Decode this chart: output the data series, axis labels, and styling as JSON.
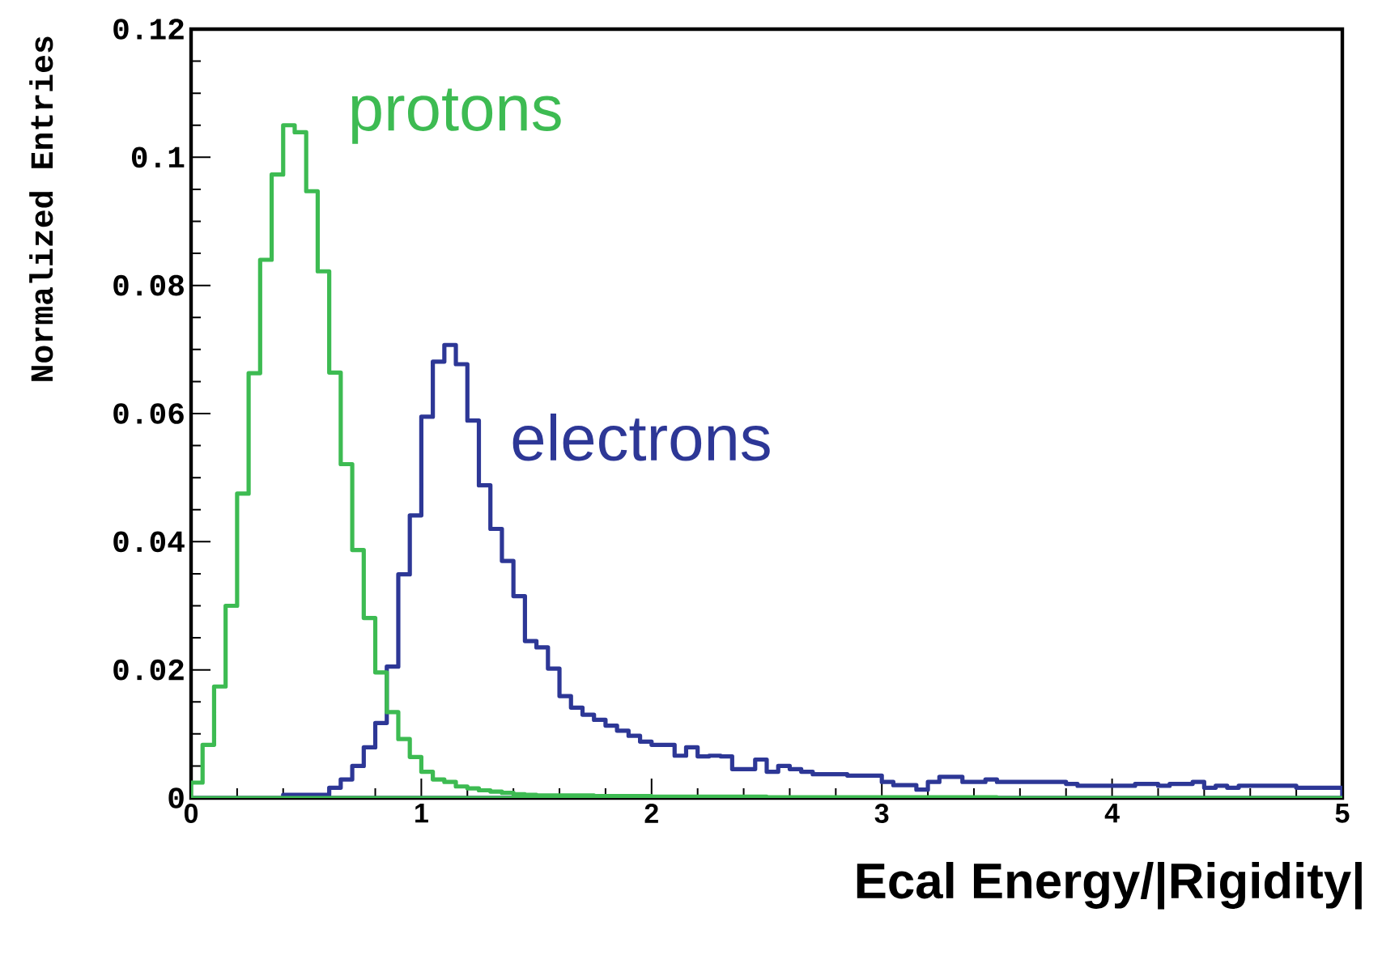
{
  "chart_data": {
    "type": "histogram",
    "xlabel": "Ecal Energy/|Rigidity|",
    "ylabel": "Normalized Entries",
    "bins": [
      0,
      0.05,
      0.1,
      0.15,
      0.2,
      0.25,
      0.3,
      0.35,
      0.4,
      0.45,
      0.5,
      0.55,
      0.6,
      0.65,
      0.7,
      0.75,
      0.8,
      0.85,
      0.9,
      0.95,
      1,
      1.05,
      1.1,
      1.15,
      1.2,
      1.25,
      1.3,
      1.35,
      1.4,
      1.45,
      1.5,
      1.55,
      1.6,
      1.65,
      1.7,
      1.75,
      1.8,
      1.85,
      1.9,
      1.95,
      2,
      2.05,
      2.1,
      2.15,
      2.2,
      2.25,
      2.3,
      2.35,
      2.4,
      2.45,
      2.5,
      2.55,
      2.6,
      2.65,
      2.7,
      2.75,
      2.8,
      2.85,
      2.9,
      2.95,
      3,
      3.05,
      3.1,
      3.15,
      3.2,
      3.25,
      3.3,
      3.35,
      3.4,
      3.45,
      3.5,
      3.55,
      3.6,
      3.65,
      3.7,
      3.75,
      3.8,
      3.85,
      3.9,
      3.95,
      4,
      4.05,
      4.1,
      4.15,
      4.2,
      4.25,
      4.3,
      4.35,
      4.4,
      4.45,
      4.5,
      4.55,
      4.6,
      4.65,
      4.7,
      4.75,
      4.8,
      4.85,
      4.9,
      4.95,
      5
    ],
    "series": [
      {
        "name": "electrons",
        "color": "#2d3796",
        "values": [
          0,
          0,
          0,
          0,
          0,
          0,
          0,
          0,
          0.0005,
          0.0005,
          0.0005,
          0.0005,
          0.0016,
          0.0029,
          0.005,
          0.0079,
          0.0117,
          0.0205,
          0.0349,
          0.0441,
          0.0595,
          0.0681,
          0.0707,
          0.0677,
          0.0589,
          0.0488,
          0.042,
          0.037,
          0.0315,
          0.0245,
          0.0235,
          0.0202,
          0.0159,
          0.0141,
          0.013,
          0.0122,
          0.0113,
          0.0105,
          0.0097,
          0.0088,
          0.0083,
          0.0083,
          0.0066,
          0.0079,
          0.0065,
          0.0066,
          0.0065,
          0.0045,
          0.0045,
          0.006,
          0.0041,
          0.005,
          0.0045,
          0.0041,
          0.0037,
          0.0037,
          0.0037,
          0.0035,
          0.0035,
          0.0035,
          0.0025,
          0.002,
          0.002,
          0.0013,
          0.0025,
          0.0033,
          0.0033,
          0.0025,
          0.0025,
          0.0029,
          0.0025,
          0.0025,
          0.0025,
          0.0025,
          0.0025,
          0.0025,
          0.0022,
          0.0019,
          0.0019,
          0.0019,
          0.0019,
          0.0019,
          0.0022,
          0.0022,
          0.0019,
          0.0022,
          0.0022,
          0.0025,
          0.0016,
          0.0019,
          0.0016,
          0.0019,
          0.0019,
          0.0019,
          0.0019,
          0.0019,
          0.0016,
          0.0016,
          0.0016,
          0.0016
        ]
      },
      {
        "name": "protons",
        "color": "#3dbb52",
        "values": [
          0.0024,
          0.0083,
          0.0174,
          0.03,
          0.0475,
          0.0663,
          0.084,
          0.0973,
          0.105,
          0.1039,
          0.0947,
          0.0822,
          0.0664,
          0.0521,
          0.0387,
          0.0281,
          0.0196,
          0.0134,
          0.0092,
          0.0064,
          0.0041,
          0.0029,
          0.0025,
          0.0018,
          0.0015,
          0.0012,
          0.001,
          0.0008,
          0.0006,
          0.0005,
          0.0004,
          0.0004,
          0.0004,
          0.0004,
          0.0004,
          0.0003,
          0.0003,
          0.0003,
          0.0003,
          0.0003,
          0.0002,
          0.0002,
          0.0002,
          0.0002,
          0.0002,
          0.0002,
          0.0002,
          0.0002,
          0.0002,
          0.0002,
          0.0001,
          0.0001,
          0.0001,
          0.0001,
          0.0001,
          0.0001,
          0.0001,
          0.0001,
          0.0001,
          0.0001,
          0.0001,
          0.0001,
          0.0001,
          0.0001,
          0.0001,
          0.0001,
          0.0001,
          0.0001,
          0.0001,
          0.0001,
          0,
          0,
          0,
          0,
          0,
          0,
          0,
          0,
          0,
          0,
          0,
          0,
          0,
          0,
          0,
          0,
          0,
          0,
          0,
          0,
          0,
          0,
          0,
          0,
          0,
          0,
          0,
          0,
          0,
          0
        ]
      }
    ],
    "xlim": [
      0,
      5
    ],
    "ylim": [
      0,
      0.12
    ],
    "xticks": [
      0,
      1,
      2,
      3,
      4,
      5
    ],
    "yticks": [
      0,
      0.02,
      0.04,
      0.06,
      0.08,
      0.1,
      0.12
    ]
  }
}
